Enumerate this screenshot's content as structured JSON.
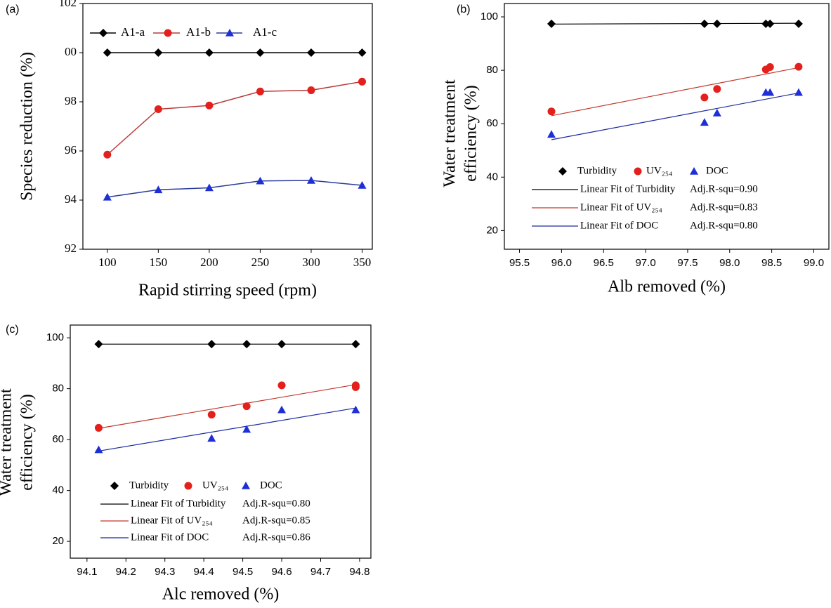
{
  "chart_data": [
    {
      "type": "line",
      "panel_label": "(a)",
      "xlabel": "Rapid stirring speed (rpm)",
      "ylabel": "Species reduction (%)",
      "x": [
        100,
        150,
        200,
        250,
        300,
        350
      ],
      "xlim": [
        76,
        360
      ],
      "xticks": [
        100,
        150,
        200,
        250,
        300,
        350
      ],
      "ylim": [
        92,
        102
      ],
      "yticks": [
        92,
        94,
        96,
        98,
        {
          "value": 100,
          "label": "00"
        },
        102
      ],
      "series": [
        {
          "name": "A1-a",
          "color": "#000000",
          "line_color": "#000000",
          "marker": "diamond",
          "values": [
            100,
            100,
            100,
            100,
            100,
            100
          ]
        },
        {
          "name": "A1-b",
          "color": "#e3201c",
          "line_color": "#b83a3a",
          "marker": "circle",
          "values": [
            95.85,
            97.7,
            97.85,
            98.42,
            98.47,
            98.82
          ]
        },
        {
          "name": "A1-c",
          "color": "#1f2fd8",
          "line_color": "#2a3a9a",
          "marker": "triangle",
          "values": [
            94.12,
            94.42,
            94.5,
            94.78,
            94.8,
            94.6
          ]
        }
      ]
    },
    {
      "type": "scatter",
      "panel_label": "(b)",
      "xlabel": "Alb removed (%)",
      "ylabel": [
        "Water treatment",
        "efficiency (%)"
      ],
      "xlim": [
        95.32,
        99.18
      ],
      "xticks": [
        95.5,
        {
          "value": 96,
          "label": "96.0"
        },
        96.5,
        {
          "value": 97,
          "label": "97.0"
        },
        97.5,
        {
          "value": 98,
          "label": "98.0"
        },
        98.5,
        {
          "value": 99,
          "label": "99.0"
        }
      ],
      "ylim": [
        13,
        105
      ],
      "yticks": [
        20,
        40,
        60,
        80,
        100
      ],
      "series": [
        {
          "name": "Turbidity",
          "color": "#000000",
          "marker": "diamond",
          "x": [
            95.88,
            97.7,
            97.85,
            98.43,
            98.48,
            98.82
          ],
          "values": [
            97.4,
            97.4,
            97.4,
            97.4,
            97.4,
            97.4
          ]
        },
        {
          "name": "UV₂₅₄",
          "color": "#e3201c",
          "marker": "circle",
          "x": [
            95.88,
            97.7,
            97.85,
            98.43,
            98.48,
            98.82
          ],
          "values": [
            64.6,
            69.8,
            73,
            80.3,
            81.2,
            81.3
          ]
        },
        {
          "name": "DOC",
          "color": "#1f2fd8",
          "marker": "triangle",
          "x": [
            95.88,
            97.7,
            97.85,
            98.43,
            98.48,
            98.82
          ],
          "values": [
            56,
            60.5,
            64,
            71.7,
            71.7,
            71.7
          ]
        }
      ],
      "fits": [
        {
          "name": "Linear Fit of Turbidity",
          "annotation": "Adj.R-squ=0.90",
          "color": "#000000",
          "x": [
            95.88,
            98.82
          ],
          "values": [
            97.3,
            97.6
          ]
        },
        {
          "name": "Linear Fit of UV₂₅₄",
          "annotation": "Adj.R-squ=0.83",
          "color": "#c0392b",
          "x": [
            95.88,
            98.82
          ],
          "values": [
            63,
            81
          ]
        },
        {
          "name": "Linear Fit of DOC",
          "annotation": "Adj.R-squ=0.80",
          "color": "#1c2a9c",
          "x": [
            95.88,
            98.82
          ],
          "values": [
            54,
            71.5
          ]
        }
      ]
    },
    {
      "type": "scatter",
      "panel_label": "(c)",
      "xlabel": "Alc removed (%)",
      "ylabel": [
        "Water treatment",
        "efficiency (%)"
      ],
      "xlim": [
        94.057,
        94.829
      ],
      "xticks": [
        94.1,
        94.2,
        94.3,
        94.4,
        94.5,
        94.6,
        94.7,
        94.8
      ],
      "ylim": [
        13.4,
        105
      ],
      "yticks": [
        20,
        40,
        60,
        80,
        100
      ],
      "series": [
        {
          "name": "Turbidity",
          "color": "#000000",
          "marker": "diamond",
          "x": [
            94.13,
            94.42,
            94.51,
            94.6,
            94.79
          ],
          "values": [
            97.5,
            97.5,
            97.5,
            97.5,
            97.5
          ]
        },
        {
          "name": "UV₂₅₄",
          "color": "#e3201c",
          "marker": "circle",
          "x": [
            94.13,
            94.42,
            94.51,
            94.6,
            94.79,
            94.79
          ],
          "values": [
            64.6,
            69.8,
            73.1,
            81.3,
            80.6,
            81.3
          ]
        },
        {
          "name": "DOC",
          "color": "#1f2fd8",
          "marker": "triangle",
          "x": [
            94.13,
            94.42,
            94.51,
            94.6,
            94.79
          ],
          "values": [
            56,
            60.5,
            64,
            71.7,
            71.7
          ]
        }
      ],
      "fits": [
        {
          "name": "Linear Fit of Turbidity",
          "annotation": "Adj.R-squ=0.80",
          "color": "#000000",
          "x": [
            94.13,
            94.79
          ],
          "values": [
            97.5,
            97.5
          ]
        },
        {
          "name": "Linear Fit of UV₂₅₄",
          "annotation": "Adj.R-squ=0.85",
          "color": "#c0392b",
          "x": [
            94.13,
            94.79
          ],
          "values": [
            64.4,
            81.6
          ]
        },
        {
          "name": "Linear Fit of DOC",
          "annotation": "Adj.R-squ=0.86",
          "color": "#1c2a9c",
          "x": [
            94.13,
            94.79
          ],
          "values": [
            55.5,
            72.4
          ]
        }
      ]
    }
  ]
}
